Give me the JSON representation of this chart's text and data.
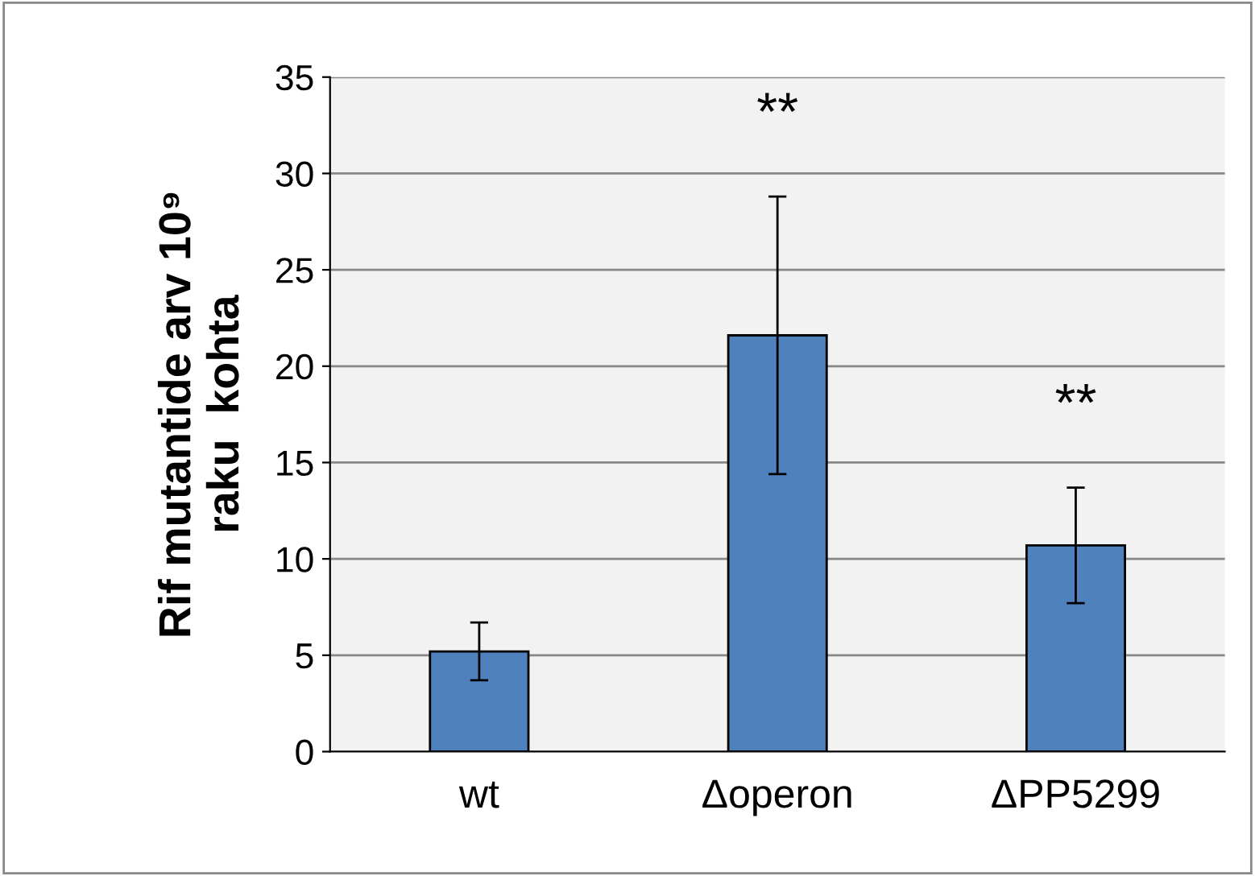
{
  "chart_data": {
    "type": "bar",
    "ylabel": "Rif mutantide arv 10⁹\nraku  kohta",
    "categories": [
      "wt",
      "Δoperon",
      "ΔPP5299"
    ],
    "values": [
      5.2,
      21.6,
      10.7
    ],
    "errors": [
      1.5,
      7.2,
      3.0
    ],
    "color": "#4f81bd",
    "ylim": [
      0,
      35
    ],
    "yticks": [
      0,
      5,
      10,
      15,
      20,
      25,
      30,
      35
    ],
    "grid": "y",
    "annotations": [
      "**",
      "**"
    ]
  }
}
